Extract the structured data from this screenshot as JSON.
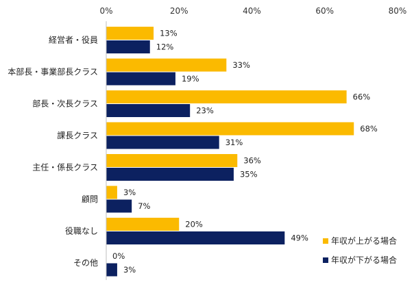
{
  "colors": {
    "series_up": "#FBBA00",
    "series_down": "#0C2160",
    "axis": "#BFBFBF"
  },
  "chart_data": {
    "type": "bar",
    "orientation": "horizontal",
    "title": "",
    "xlabel": "",
    "ylabel": "",
    "xlim": [
      0,
      80
    ],
    "ticks": [
      0,
      20,
      40,
      60,
      80
    ],
    "tick_labels": [
      "0%",
      "20%",
      "40%",
      "60%",
      "80%"
    ],
    "grid": false,
    "legend_position": "bottom-right",
    "categories": [
      "経営者・役員",
      "本部長・事業部長クラス",
      "部長・次長クラス",
      "課長クラス",
      "主任・係長クラス",
      "顧問",
      "役職なし",
      "その他"
    ],
    "series": [
      {
        "name": "年収が上がる場合",
        "values": [
          13,
          33,
          66,
          68,
          36,
          3,
          20,
          0
        ],
        "labels": [
          "13%",
          "33%",
          "66%",
          "68%",
          "36%",
          "3%",
          "20%",
          "0%"
        ]
      },
      {
        "name": "年収が下がる場合",
        "values": [
          12,
          19,
          23,
          31,
          35,
          7,
          49,
          3
        ],
        "labels": [
          "12%",
          "19%",
          "23%",
          "31%",
          "35%",
          "7%",
          "49%",
          "3%"
        ]
      }
    ]
  }
}
